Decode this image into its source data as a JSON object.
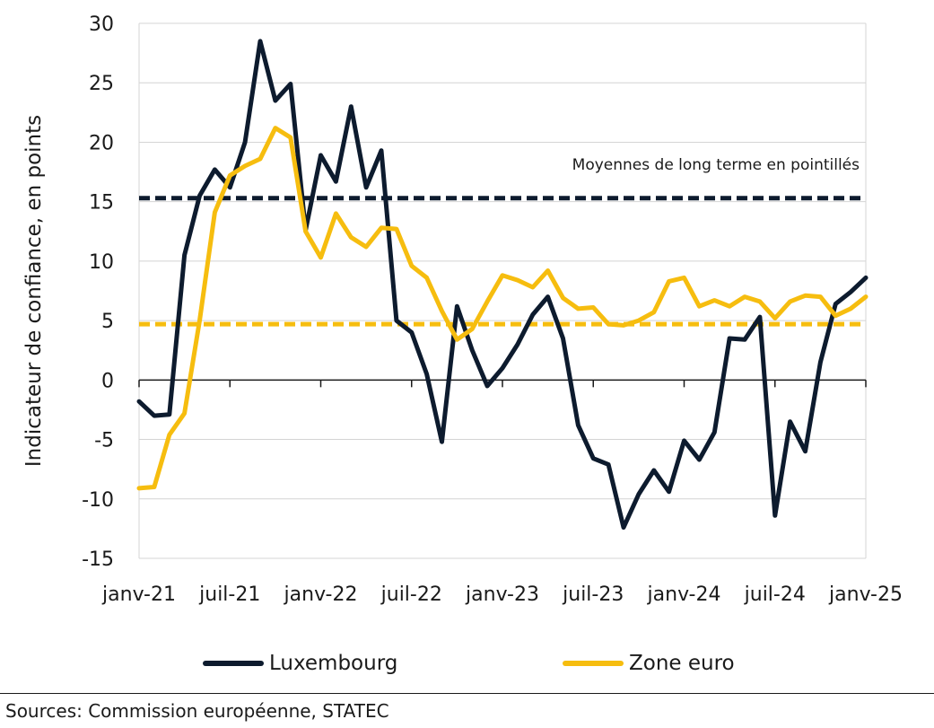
{
  "chart_data": {
    "type": "line",
    "ylabel": "Indicateur de confiance, en points",
    "ylim": [
      -15,
      30
    ],
    "yticks": [
      -15,
      -10,
      -5,
      0,
      5,
      10,
      15,
      20,
      25,
      30
    ],
    "xlabels": [
      "janv-21",
      "juil-21",
      "janv-22",
      "juil-22",
      "janv-23",
      "juil-23",
      "janv-24",
      "juil-24",
      "janv-25"
    ],
    "x_start": "janv-21",
    "n_months": 49,
    "grid": "horizontal",
    "annotation": "Moyennes de long terme en pointillés",
    "series": [
      {
        "name": "Luxembourg",
        "color": "#0d1b2e",
        "values": [
          -1.8,
          -3.0,
          -2.9,
          10.5,
          15.5,
          17.7,
          16.2,
          20.0,
          28.5,
          23.5,
          24.9,
          12.6,
          18.9,
          16.7,
          23.0,
          16.2,
          19.3,
          5.0,
          4.0,
          0.5,
          -5.2,
          6.2,
          2.5,
          -0.5,
          1.0,
          3.0,
          5.5,
          7.0,
          3.5,
          -3.8,
          -6.6,
          -7.1,
          -12.4,
          -9.6,
          -7.6,
          -9.4,
          -5.1,
          -6.7,
          -4.4,
          3.5,
          3.4,
          5.3,
          -11.4,
          -3.5,
          -6.0,
          1.5,
          6.4,
          7.4,
          8.6
        ]
      },
      {
        "name": "Zone euro",
        "color": "#f6bd0f",
        "values": [
          -9.1,
          -9.0,
          -4.6,
          -2.8,
          5.0,
          14.1,
          17.2,
          18.0,
          18.6,
          21.2,
          20.4,
          12.5,
          10.3,
          14.0,
          12.0,
          11.2,
          12.8,
          12.7,
          9.6,
          8.6,
          5.8,
          3.4,
          4.3,
          6.6,
          8.8,
          8.4,
          7.8,
          9.2,
          6.9,
          6.0,
          6.1,
          4.7,
          4.6,
          5.0,
          5.7,
          8.3,
          8.6,
          6.2,
          6.7,
          6.2,
          7.0,
          6.6,
          5.2,
          6.6,
          7.1,
          7.0,
          5.4,
          6.0,
          7.0
        ]
      }
    ],
    "long_term_averages": [
      {
        "series": "Luxembourg",
        "value": 15.3,
        "color": "#0d1b2e"
      },
      {
        "series": "Zone euro",
        "value": 4.7,
        "color": "#f6bd0f"
      }
    ]
  },
  "legend": [
    {
      "label": "Luxembourg",
      "color": "#0d1b2e"
    },
    {
      "label": "Zone euro",
      "color": "#f6bd0f"
    }
  ],
  "source": "Sources: Commission européenne, STATEC"
}
